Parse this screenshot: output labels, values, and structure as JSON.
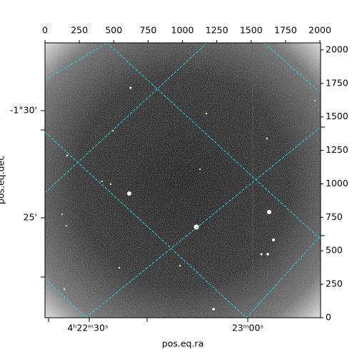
{
  "chart_data": {
    "type": "image",
    "xlabel": "pos.eq.ra",
    "ylabel": "pos.eq.dec",
    "xlim": [
      0,
      2005
    ],
    "ylim": [
      0,
      2053
    ],
    "xticks": [
      0,
      250,
      500,
      750,
      1000,
      1250,
      1500,
      1750,
      2000
    ],
    "yticks": [
      0,
      250,
      500,
      750,
      1000,
      1250,
      1500,
      1750,
      2000
    ],
    "ra_labels": [
      "4ʰ22ᵐ30ˢ",
      "23ᵐ00ˢ"
    ],
    "dec_labels": [
      "-1°30'",
      "25'"
    ]
  }
}
